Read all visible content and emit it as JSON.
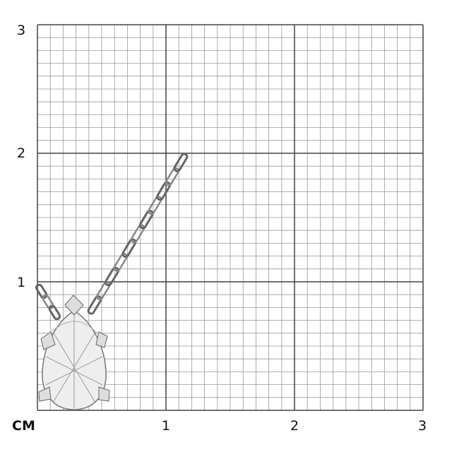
{
  "scale": {
    "unit_label": "CM",
    "x_ticks": [
      "1",
      "2",
      "3"
    ],
    "y_ticks": [
      "1",
      "2",
      "3"
    ],
    "range_cm": [
      0,
      3
    ],
    "minor_divisions_per_cm": 10
  },
  "colors": {
    "major_grid": "#444444",
    "minor_grid": "#9a9a9a",
    "metal": "#d8d8d8"
  },
  "product": {
    "type": "pear-shaped pendant necklace with cable chain"
  }
}
